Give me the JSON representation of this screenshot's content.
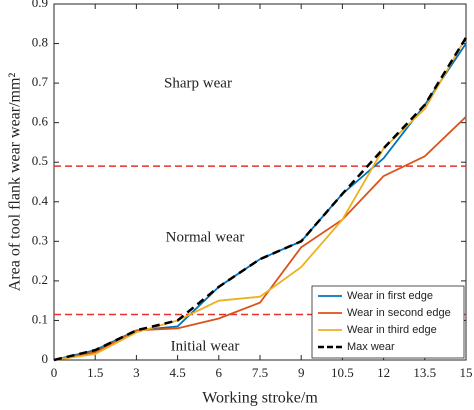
{
  "chart_data": {
    "type": "line",
    "x_label": "Working stroke/m",
    "y_label": "Area of tool flank wear wear/mm²",
    "x": [
      0,
      1.5,
      3,
      4.5,
      6,
      7.5,
      9,
      10.5,
      12,
      13.5,
      15
    ],
    "series": [
      {
        "name": "Wear in first edge",
        "color": "#0072bd",
        "line_style": "solid",
        "values": [
          0,
          0.025,
          0.075,
          0.085,
          0.185,
          0.255,
          0.3,
          0.42,
          0.51,
          0.645,
          0.8
        ]
      },
      {
        "name": "Wear in second edge",
        "color": "#d95319",
        "line_style": "solid",
        "values": [
          0,
          0.02,
          0.075,
          0.08,
          0.105,
          0.145,
          0.285,
          0.355,
          0.465,
          0.515,
          0.615
        ]
      },
      {
        "name": "Wear in third edge",
        "color": "#edb120",
        "line_style": "solid",
        "values": [
          0,
          0.015,
          0.07,
          0.1,
          0.15,
          0.16,
          0.235,
          0.355,
          0.535,
          0.635,
          0.815
        ]
      },
      {
        "name": "Max wear",
        "color": "#000000",
        "line_style": "dashed",
        "values": [
          0,
          0.025,
          0.075,
          0.1,
          0.185,
          0.255,
          0.3,
          0.42,
          0.535,
          0.645,
          0.815
        ]
      }
    ],
    "reference_lines": [
      {
        "value": 0.49,
        "color": "#e8312f"
      },
      {
        "value": 0.115,
        "color": "#e8312f"
      }
    ],
    "annotations": [
      "Sharp wear",
      "Normal wear",
      "Initial wear"
    ],
    "xlim": [
      0,
      15
    ],
    "xticks": [
      0,
      1.5,
      3,
      4.5,
      6,
      7.5,
      9,
      10.5,
      12,
      13.5,
      15
    ],
    "ylim": [
      0,
      0.9
    ],
    "yticks": [
      0,
      0.1,
      0.2,
      0.3,
      0.4,
      0.5,
      0.6,
      0.7,
      0.8,
      0.9
    ],
    "grid": false,
    "legend_position": "lower right"
  }
}
